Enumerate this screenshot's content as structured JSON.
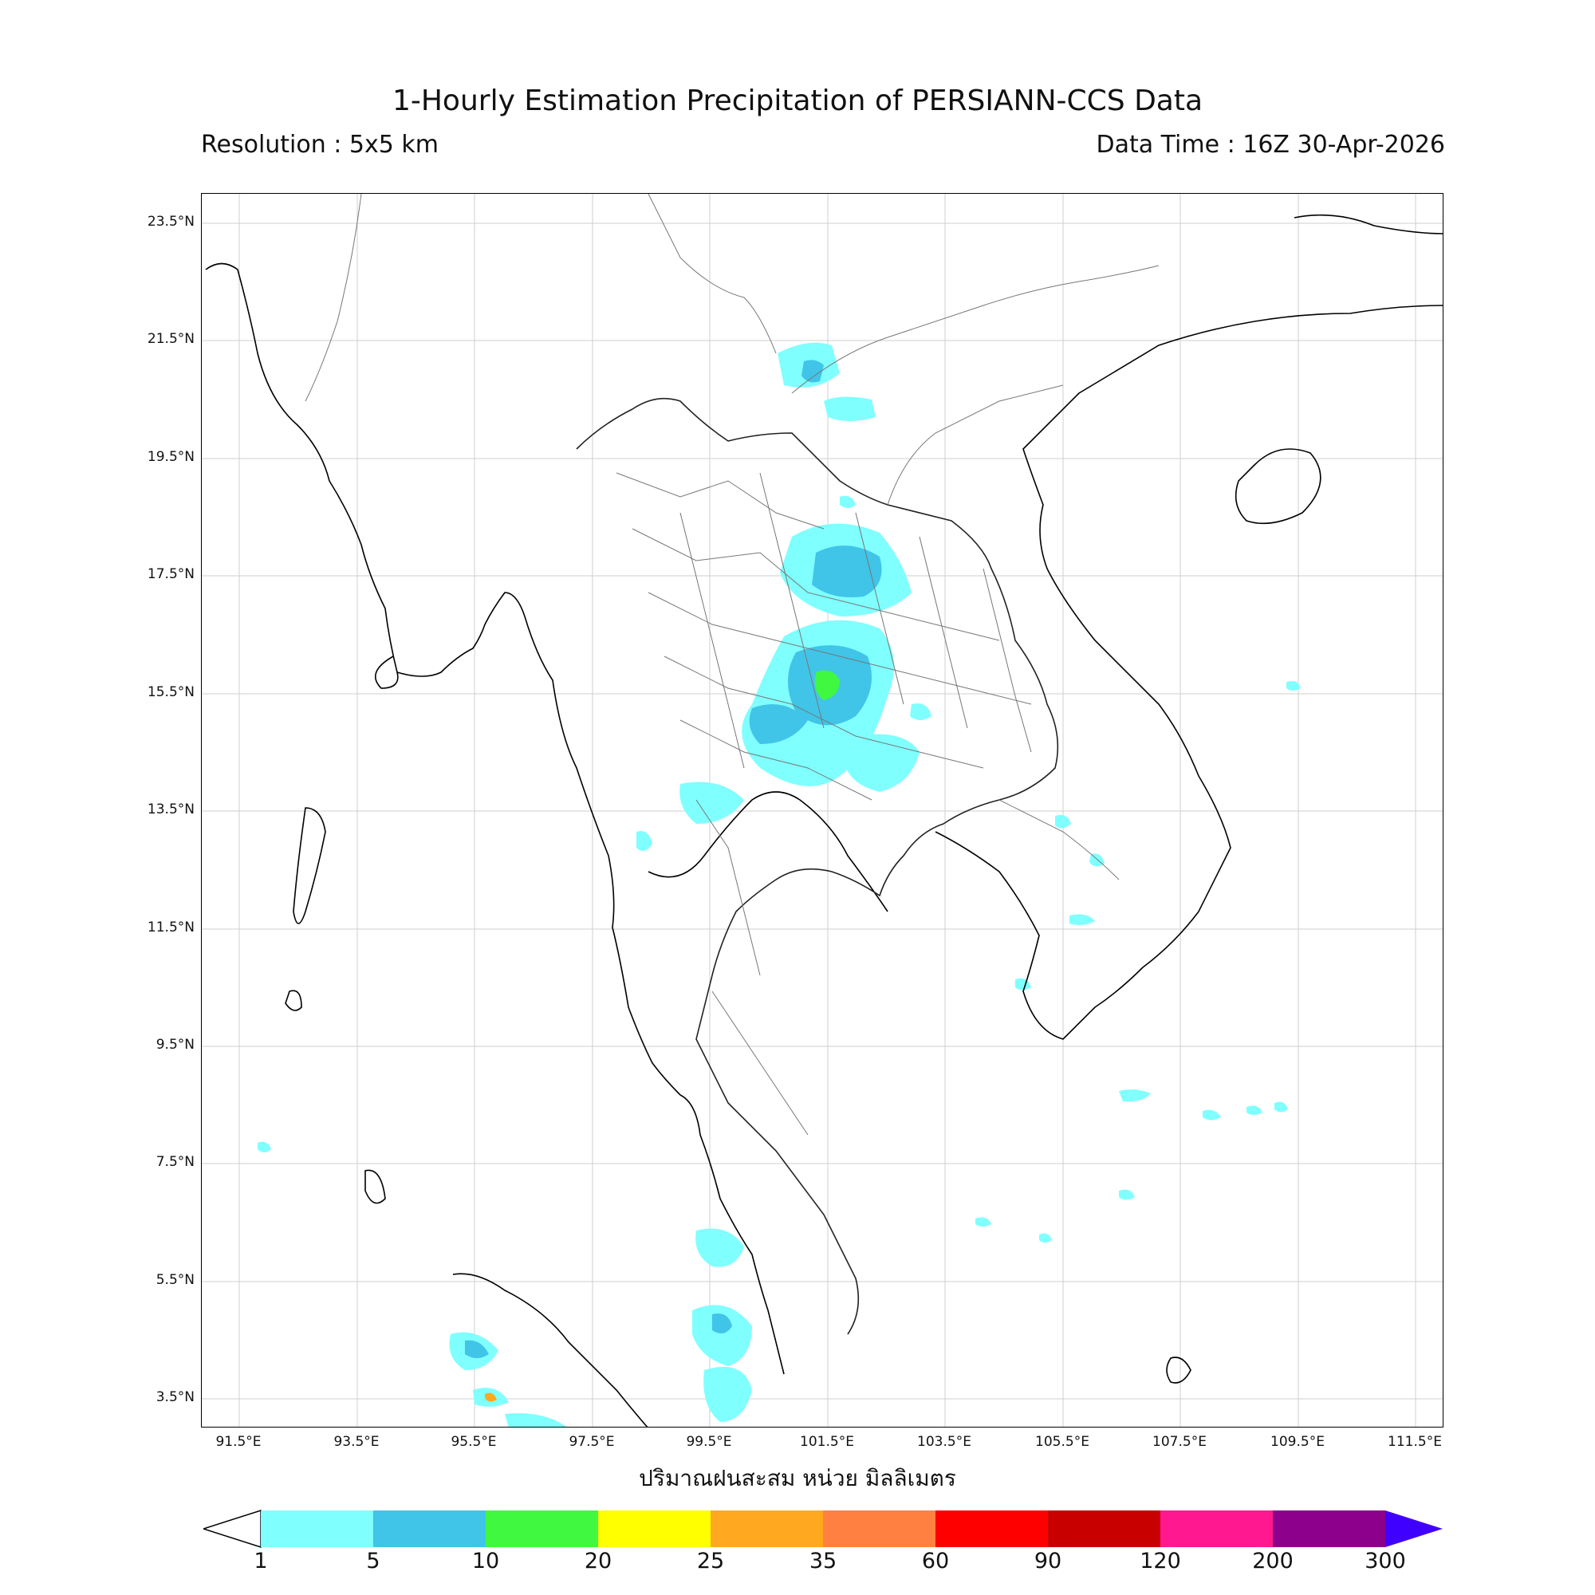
{
  "header": {
    "title": "1-Hourly Estimation Precipitation of PERSIANN-CCS Data",
    "resolution": "Resolution : 5x5 km",
    "data_time": "Data Time : 16Z 30-Apr-2026"
  },
  "map": {
    "lon_range": [
      90.8,
      111.8
    ],
    "lat_range": [
      2.8,
      23.8
    ],
    "lat_ticks": [
      "23.5°N",
      "21.5°N",
      "19.5°N",
      "17.5°N",
      "15.5°N",
      "13.5°N",
      "11.5°N",
      "9.5°N",
      "7.5°N",
      "5.5°N",
      "3.5°N"
    ],
    "lon_ticks": [
      "91.5°E",
      "93.5°E",
      "95.5°E",
      "97.5°E",
      "99.5°E",
      "101.5°E",
      "103.5°E",
      "105.5°E",
      "107.5°E",
      "109.5°E",
      "111.5°E"
    ]
  },
  "legend": {
    "unit_label": "ปริมาณฝนสะสม หน่วย มิลลิเมตร",
    "ticks": [
      "1",
      "5",
      "10",
      "20",
      "25",
      "35",
      "60",
      "90",
      "120",
      "200",
      "300"
    ],
    "colors": [
      "#80ffff",
      "#40c4e8",
      "#40f840",
      "#ffff00",
      "#ffa820",
      "#ff8040",
      "#ff0000",
      "#c80000",
      "#ff1890",
      "#8c008c",
      "#4000ff"
    ]
  }
}
